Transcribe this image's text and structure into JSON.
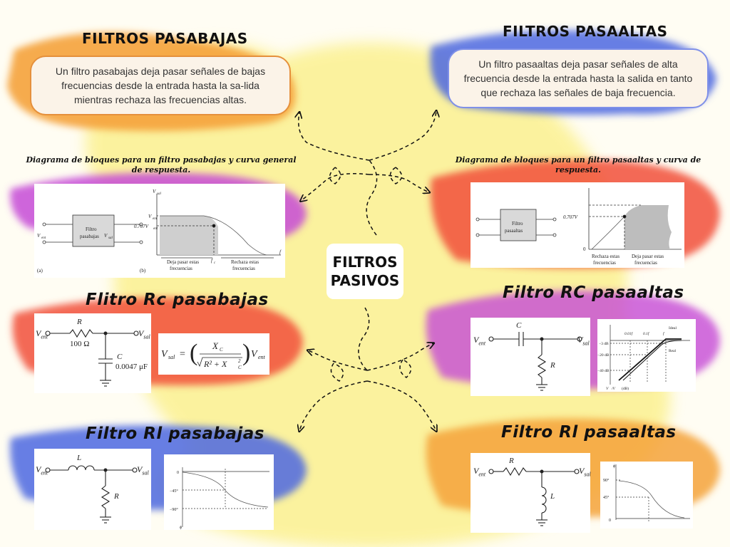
{
  "center": {
    "line1": "FILTROS",
    "line2": "PASIVOS"
  },
  "lowpass": {
    "title": "FILTROS PASABAJAS",
    "description": "Un filtro pasabajas deja pasar señales de bajas frecuencias desde la entrada hasta la sa-lida mientras rechaza las frecuencias altas.",
    "block_caption": "Diagrama de bloques para un filtro pasabajas y curva general de respuesta.",
    "rc_title": "Flitro Rc pasabajas",
    "rl_title": "Filtro Rl pasabajas"
  },
  "highpass": {
    "title": "FILTROS PASAALTAS",
    "description": "Un filtro pasaaltas deja pasar señales de alta frecuencia desde la entrada hasta la salida en tanto que rechaza las señales de baja frecuencia.",
    "block_caption": "Diagrama de bloques para un filtro pasaaltas y curva de respuesta.",
    "rc_title": "Filtro RC pasaaltas",
    "rl_title": "Filtro Rl pasaaltas"
  },
  "diagrams": {
    "lp_block": {
      "box_line1": "Filtro",
      "box_line2": "pasabajas",
      "vin": "V",
      "vin_sub": "ent",
      "vout": "V",
      "vout_sub": "sal",
      "label_a": "(a)",
      "label_b": "(b)",
      "level": "0.707V",
      "level_sub": "ent",
      "vent": "V",
      "vent_sub": "ent",
      "yaxis": "V",
      "yaxis_sub": "sal",
      "fc": "f",
      "fc_sub": "c",
      "f": "f",
      "pass1": "Deja pasar estas",
      "pass2": "frecuencias",
      "rej1": "Rechaza estas",
      "rej2": "frecuencias"
    },
    "hp_block": {
      "box_line1": "Filtro",
      "box_line2": "pasaaltas",
      "level": "0.707V",
      "zero": "0",
      "rej1": "Rechaza estas",
      "rej2": "frecuencias",
      "pass1": "Deja pasar estas",
      "pass2": "frecuencias"
    },
    "rc_lp": {
      "r": "R",
      "r_val": "100 Ω",
      "c": "C",
      "c_val": "0.0047 μF"
    },
    "rc_hp": {
      "c": "C",
      "r": "R",
      "ideal": "Ideal",
      "real": "Real",
      "t1": "0.01f",
      "t2": "0.1f",
      "t3": "f",
      "d3": "−3 dB",
      "d20": "−20 dB",
      "d40": "−40 dB",
      "xlabel": "V",
      "xlabel2": "/V",
      "xlabel3": "(dB)"
    },
    "rl_lp": {
      "l": "L",
      "r": "R",
      "zero": "0",
      "d45": "−45°",
      "d90": "−90°",
      "phi": "ϕ"
    },
    "rl_hp": {
      "r": "R",
      "l": "L",
      "d90": "90°",
      "d45": "45°",
      "zero": "0",
      "phi": "ϕ"
    },
    "formula": {
      "lhs": "V",
      "lhs_sub": "sal",
      "num": "X",
      "num_sub": "C",
      "den": "R² + X",
      "den_sub": "C",
      "den_sup": "2",
      "rhs": "V",
      "rhs_sub": "ent"
    }
  },
  "colors": {
    "orange": "#f5a23a",
    "blue": "#4c67e0",
    "magenta": "#c54ad6",
    "red": "#f1503a",
    "yellow": "#f9ea5a"
  }
}
